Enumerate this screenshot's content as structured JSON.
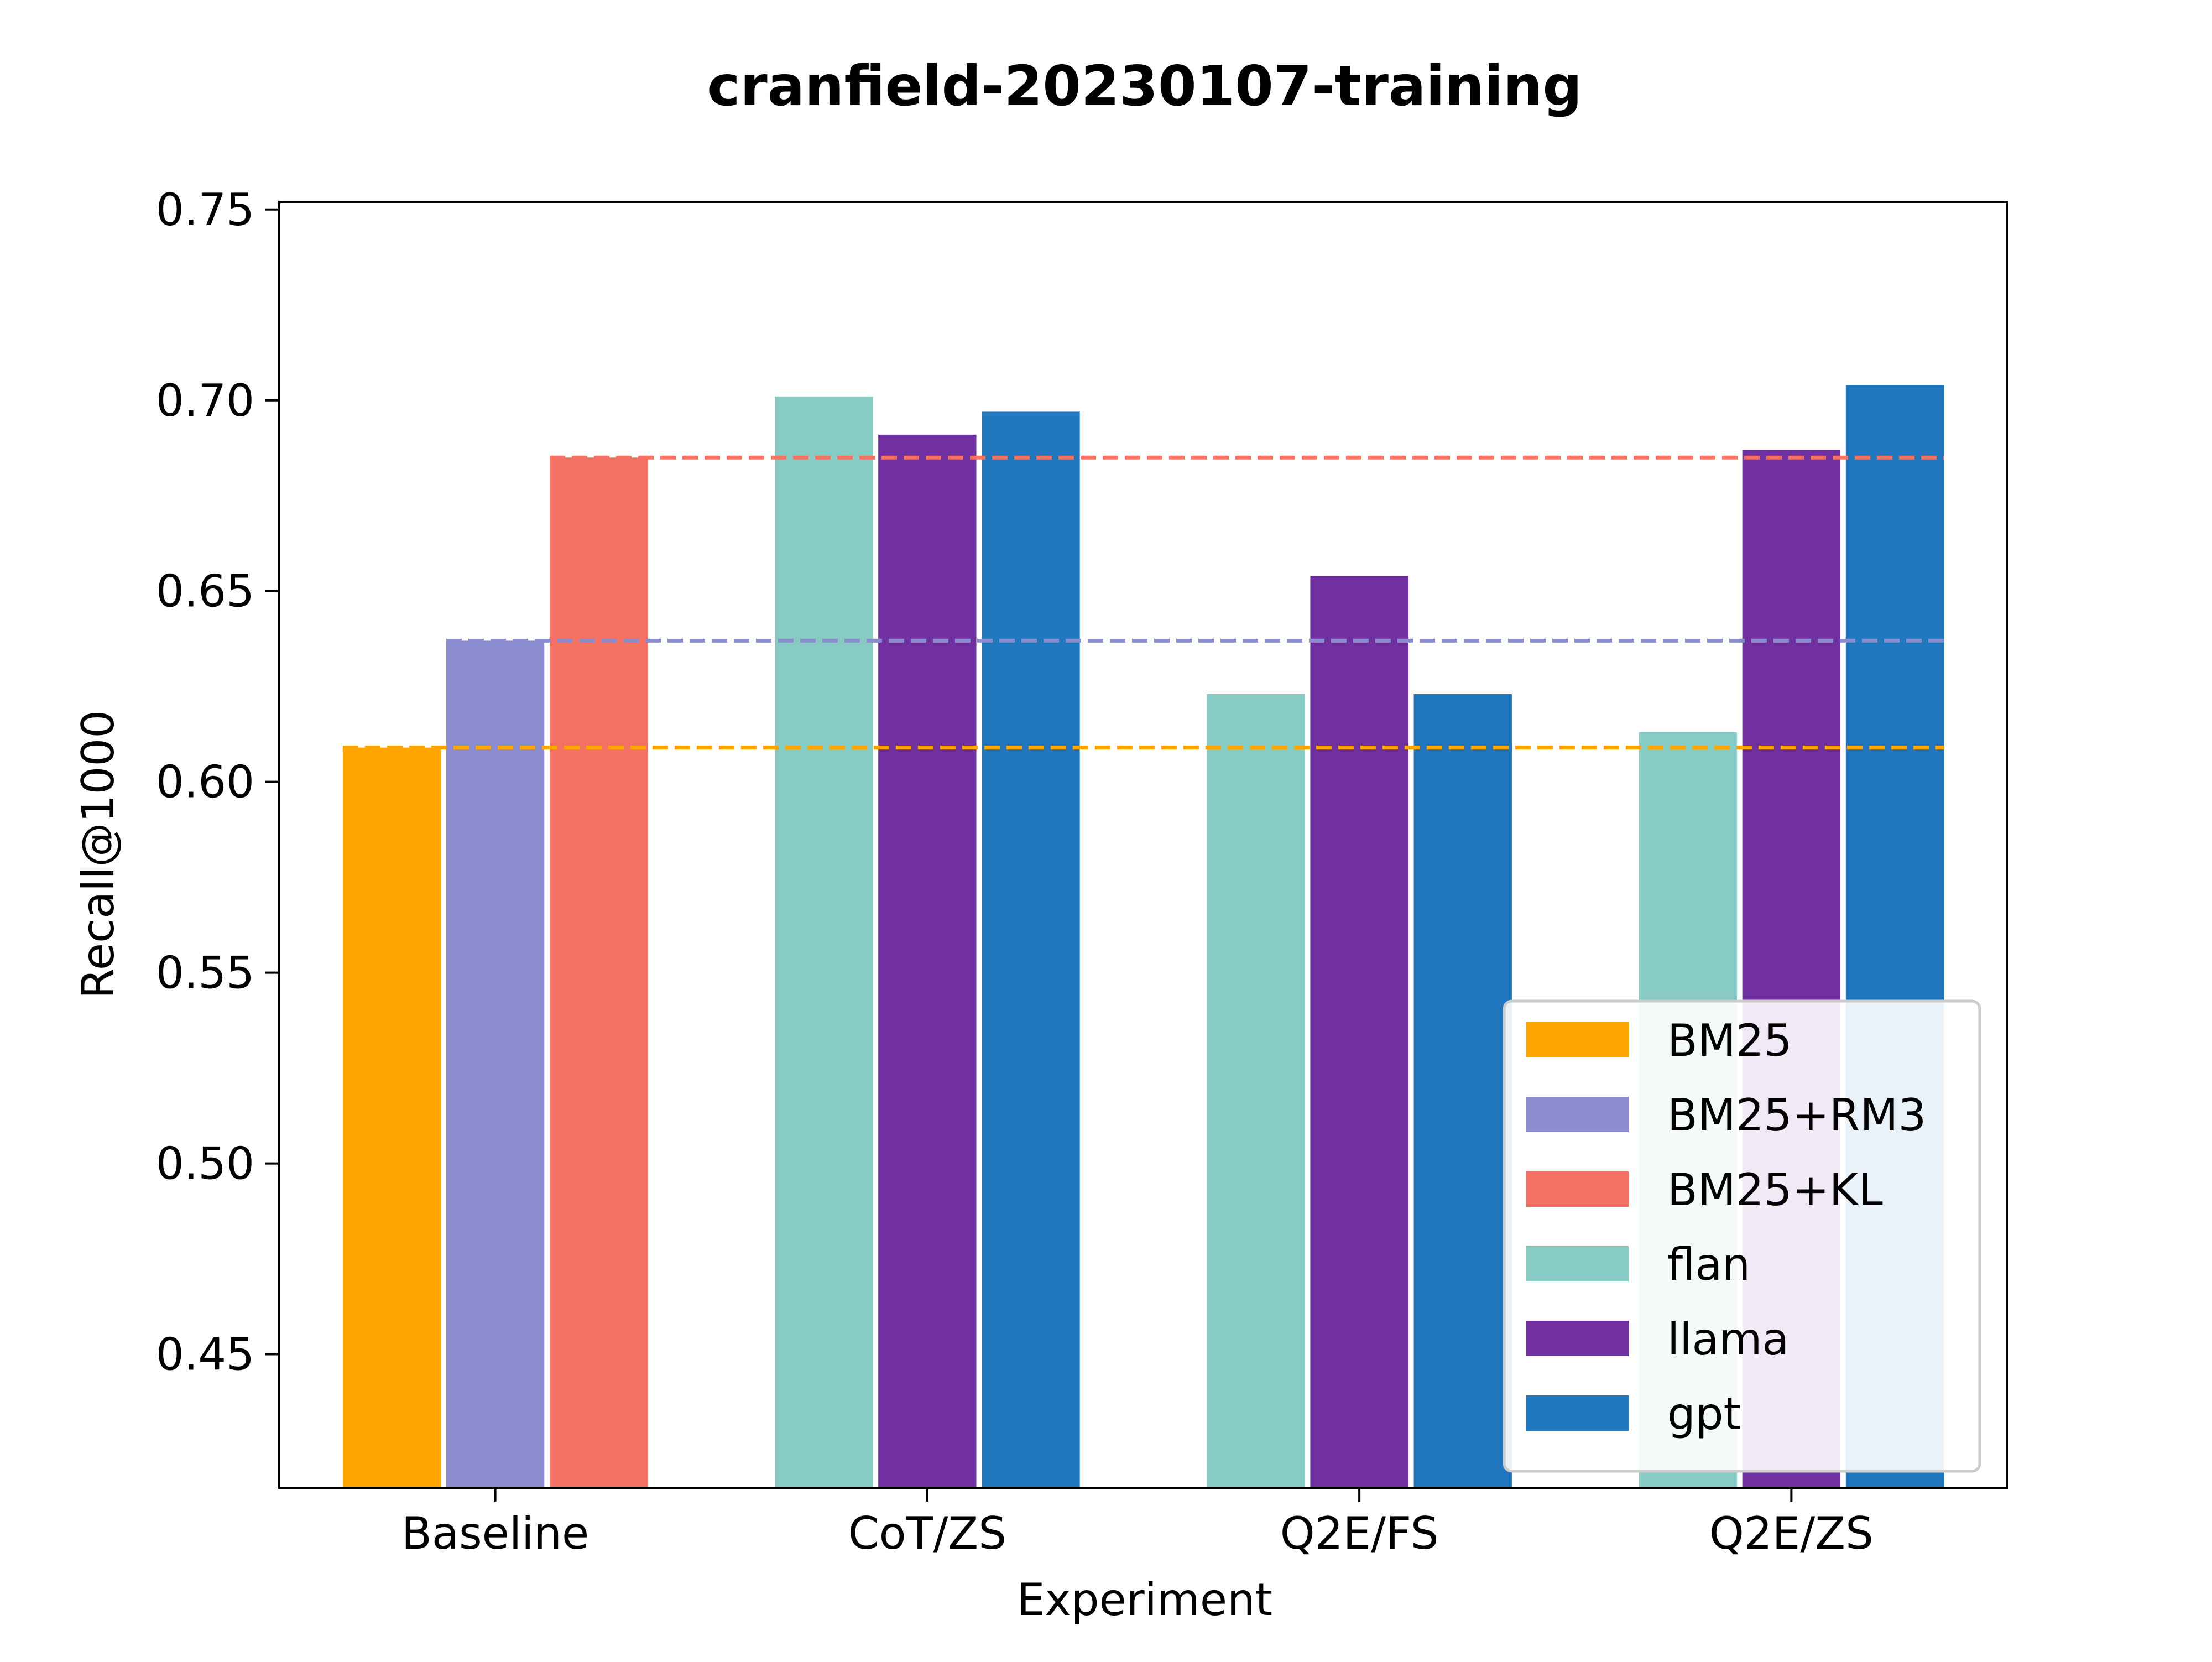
{
  "chart_data": {
    "type": "bar",
    "title": "cranfield-20230107-training",
    "xlabel": "Experiment",
    "ylabel": "Recall@1000",
    "ylim": [
      0.415,
      0.752
    ],
    "yticks": [
      "0.45",
      "0.50",
      "0.55",
      "0.60",
      "0.65",
      "0.70",
      "0.75"
    ],
    "categories": [
      "Baseline",
      "CoT/ZS",
      "Q2E/FS",
      "Q2E/ZS"
    ],
    "baseline_series": [
      {
        "name": "BM25",
        "color": "#ffa500",
        "value": 0.609
      },
      {
        "name": "BM25+RM3",
        "color": "#8a8ccf",
        "value": 0.637
      },
      {
        "name": "BM25+KL",
        "color": "#f47264",
        "value": 0.685
      }
    ],
    "model_series": [
      {
        "name": "flan",
        "color": "#87cbc4",
        "values": [
          null,
          0.701,
          0.623,
          0.613
        ]
      },
      {
        "name": "llama",
        "color": "#7030a0",
        "values": [
          null,
          0.691,
          0.654,
          0.687
        ]
      },
      {
        "name": "gpt",
        "color": "#2077bd",
        "values": [
          null,
          0.697,
          0.623,
          0.704
        ]
      }
    ],
    "legend": {
      "position": "lower right",
      "entries": [
        "BM25",
        "BM25+RM3",
        "BM25+KL",
        "flan",
        "llama",
        "gpt"
      ]
    },
    "grid": false
  }
}
